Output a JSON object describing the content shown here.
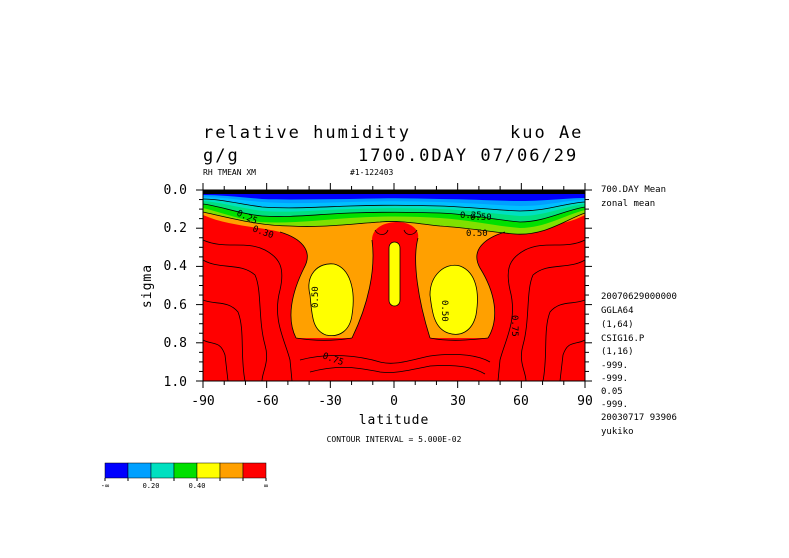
{
  "chart_data": {
    "type": "heatmap",
    "title": "relative humidity",
    "title_right": "kuo Ae",
    "units": "g/g",
    "time_label": "1700.0DAY 07/06/29",
    "sub_left": "RH TMEAN XM",
    "sub_mid": "#1-122403",
    "xlabel": "latitude",
    "ylabel": "sigma",
    "xlim": [
      -90,
      90
    ],
    "ylim": [
      1.0,
      0.0
    ],
    "x_ticks": [
      "-90",
      "-60",
      "-30",
      "0",
      "30",
      "60",
      "90"
    ],
    "y_ticks": [
      "0.0",
      "0.2",
      "0.4",
      "0.6",
      "0.8",
      "1.0"
    ],
    "contour_interval_text": "CONTOUR INTERVAL = 5.000E-02",
    "contour_labels": [
      "0.25",
      "0.30",
      "0.50",
      "0.25",
      "0.50",
      "0.50",
      "0.50",
      "0.75",
      "0.75"
    ],
    "color_levels": [
      {
        "color": "#0000ff"
      },
      {
        "color": "#00a0ff"
      },
      {
        "color": "#00e0c0"
      },
      {
        "color": "#00e000"
      },
      {
        "color": "#ffff00"
      },
      {
        "color": "#ffa000"
      },
      {
        "color": "#ff0000"
      }
    ],
    "colorbar_labels": [
      "-∞",
      "0.20",
      "0.40",
      "∞"
    ],
    "side_info": [
      "700.DAY Mean",
      "zonal mean",
      "20070629000000",
      "GGLA64",
      "(1,64)",
      "CSIG16.P",
      "(1,16)",
      "-999.",
      "-999.",
      "0.05",
      "-999.",
      "20030717  93906",
      "yukiko"
    ]
  }
}
